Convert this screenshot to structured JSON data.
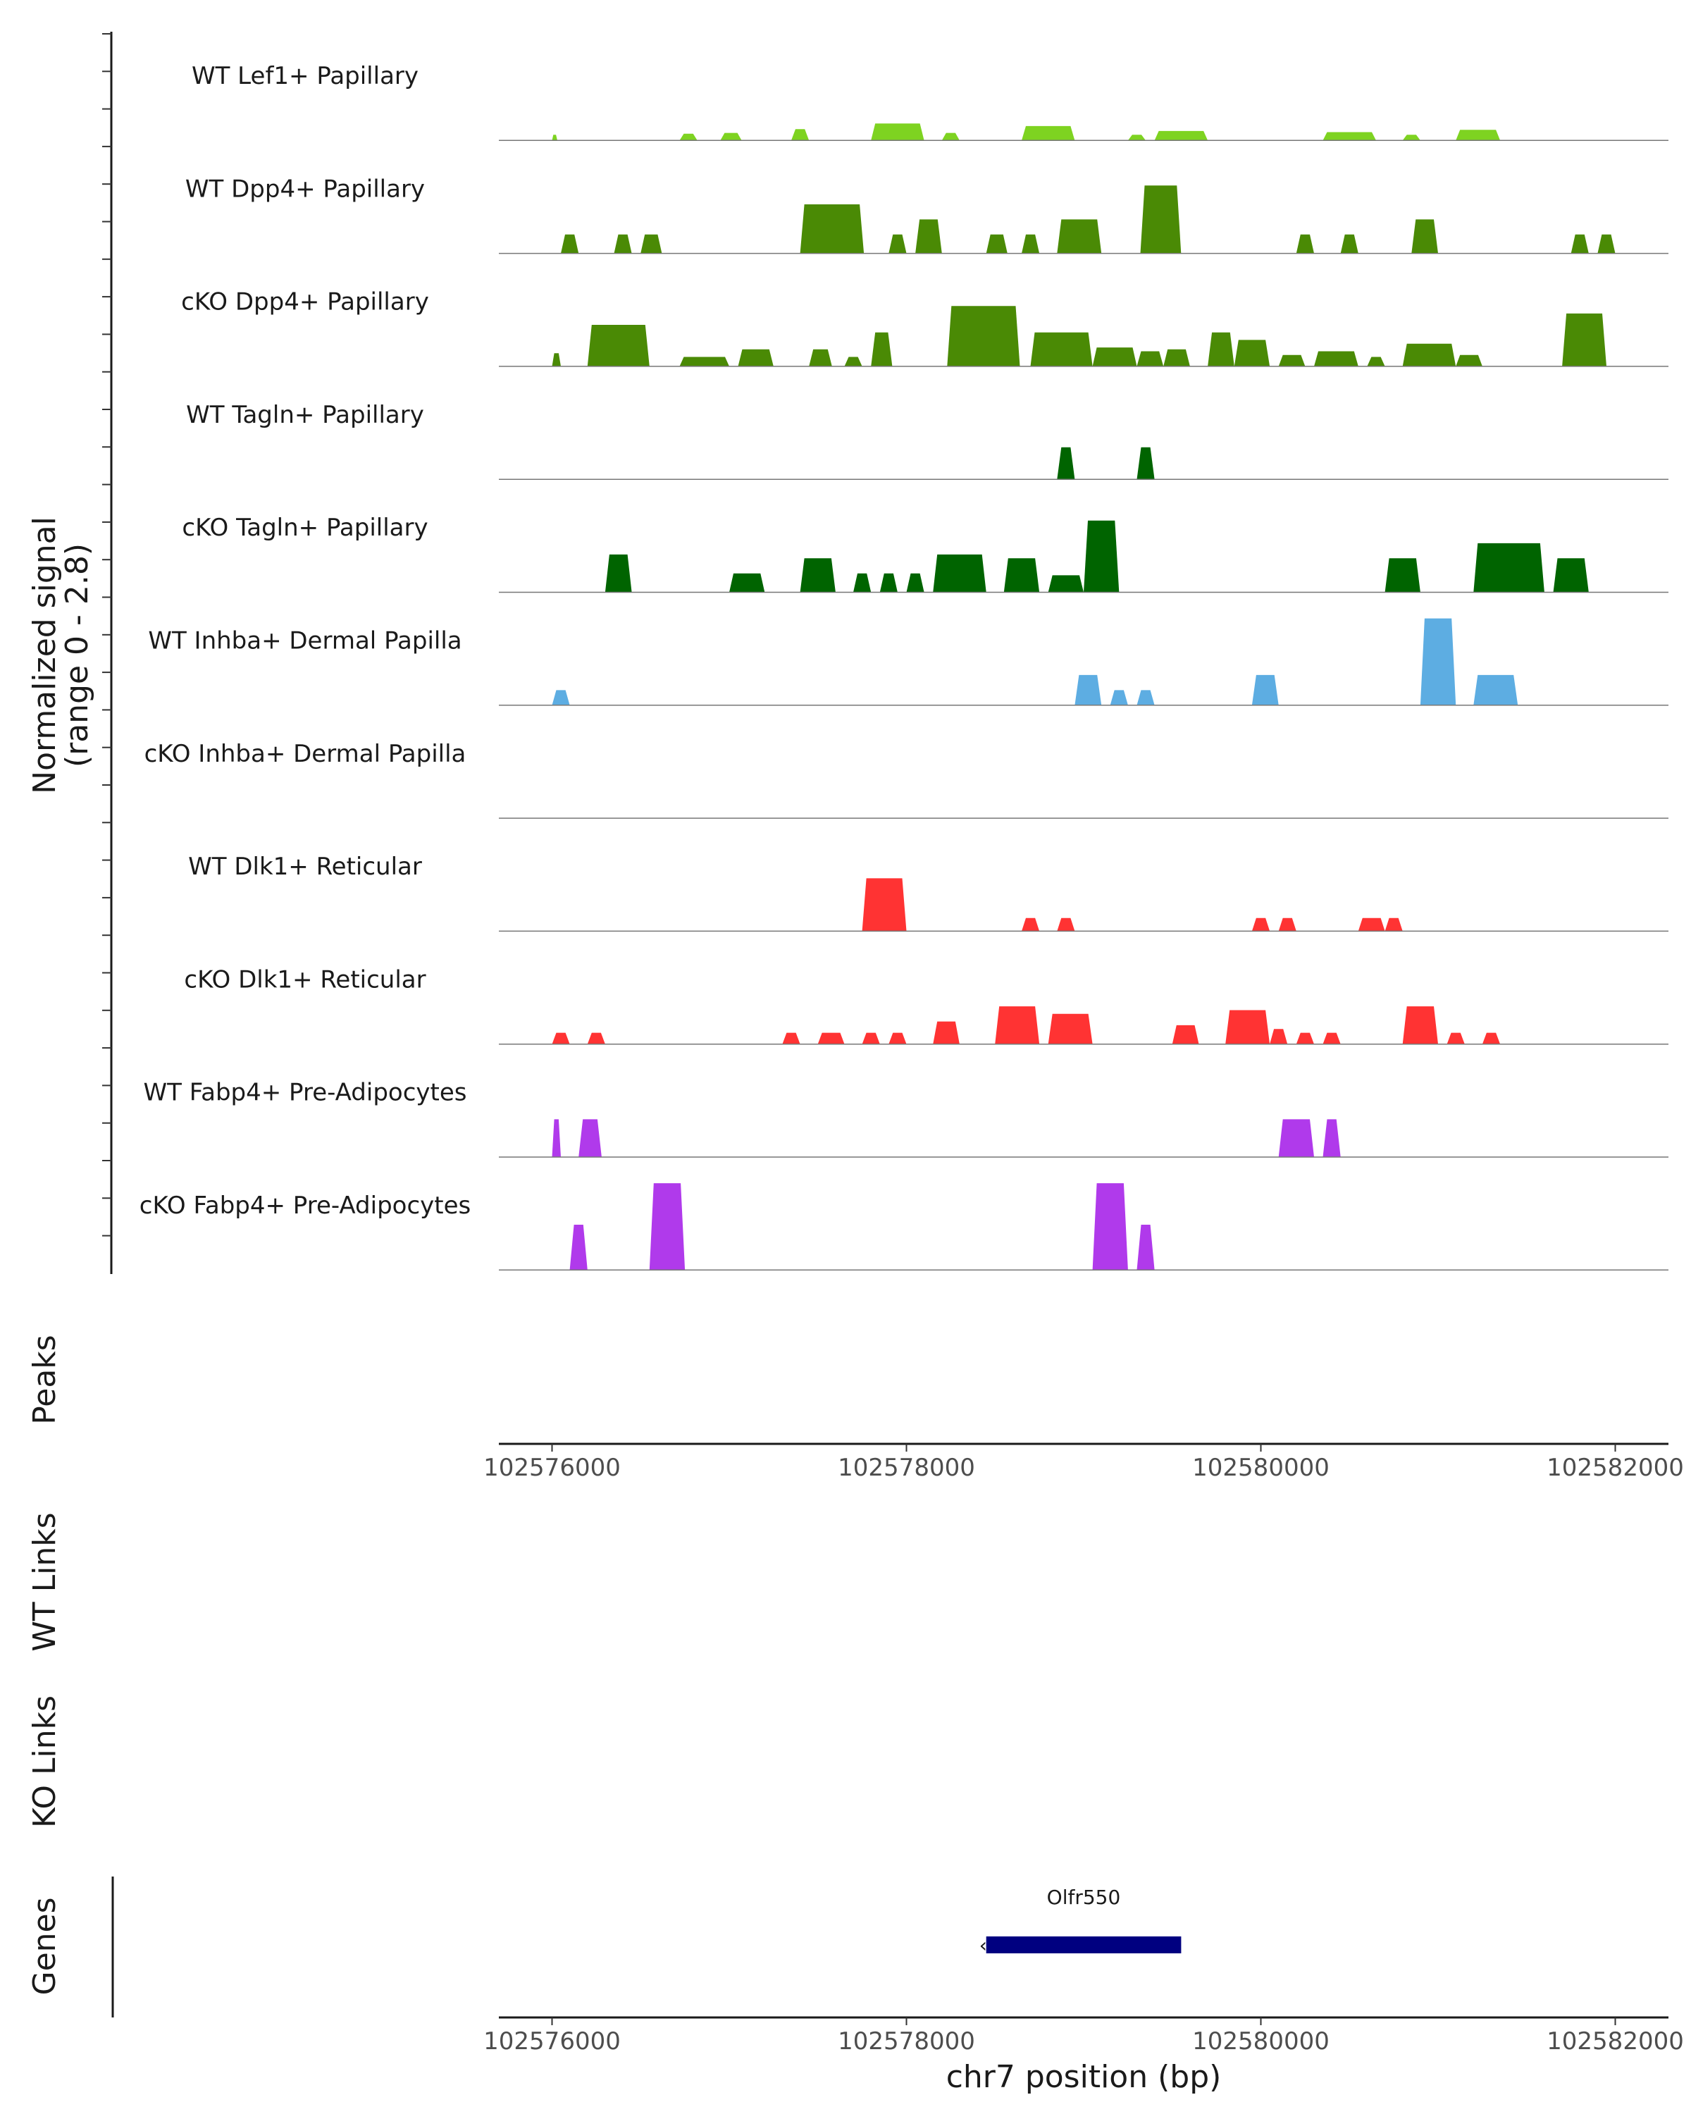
{
  "chart_data": {
    "type": "coverage",
    "chromosome": "chr7",
    "xlim": [
      102575700,
      102582300
    ],
    "x_ticks": [
      102576000,
      102578000,
      102580000,
      102582000
    ],
    "x_tick_labels": [
      "102576000",
      "102578000",
      "102580000",
      "102582000"
    ],
    "xlabel": "chr7 position (bp)",
    "ylabel_line1": "Normalized signal",
    "ylabel_line2": "(range 0 - 2.8)",
    "ylim": [
      0,
      2.8
    ],
    "section_labels": {
      "peaks": "Peaks",
      "wt_links": "WT Links",
      "ko_links": "KO Links",
      "genes": "Genes"
    },
    "tracks": [
      {
        "name": "WT Lef1+ Papillary",
        "color": "#7ED321",
        "segments": [
          [
            102576000,
            102576030,
            0.15
          ],
          [
            102576720,
            102576820,
            0.18
          ],
          [
            102576950,
            102577070,
            0.2
          ],
          [
            102577350,
            102577450,
            0.3
          ],
          [
            102577800,
            102578100,
            0.45
          ],
          [
            102578200,
            102578300,
            0.2
          ],
          [
            102578650,
            102578950,
            0.38
          ],
          [
            102579250,
            102579350,
            0.15
          ],
          [
            102579400,
            102579700,
            0.25
          ],
          [
            102580350,
            102580650,
            0.22
          ],
          [
            102580800,
            102580900,
            0.15
          ],
          [
            102581100,
            102581350,
            0.28
          ]
        ]
      },
      {
        "name": "WT Dpp4+ Papillary",
        "color": "#4A8A05",
        "segments": [
          [
            102576050,
            102576150,
            0.5
          ],
          [
            102576350,
            102576450,
            0.5
          ],
          [
            102576500,
            102576620,
            0.5
          ],
          [
            102577400,
            102577760,
            1.3
          ],
          [
            102577900,
            102578000,
            0.5
          ],
          [
            102578050,
            102578200,
            0.9
          ],
          [
            102578450,
            102578570,
            0.5
          ],
          [
            102578650,
            102578750,
            0.5
          ],
          [
            102578850,
            102579100,
            0.9
          ],
          [
            102579320,
            102579550,
            1.8
          ],
          [
            102580200,
            102580300,
            0.5
          ],
          [
            102580450,
            102580550,
            0.5
          ],
          [
            102580850,
            102581000,
            0.9
          ],
          [
            102581750,
            102581850,
            0.5
          ],
          [
            102581900,
            102582000,
            0.5
          ]
        ]
      },
      {
        "name": "cKO Dpp4+ Papillary",
        "color": "#4A8A05",
        "segments": [
          [
            102576000,
            102576050,
            0.35
          ],
          [
            102576200,
            102576550,
            1.1
          ],
          [
            102576720,
            102577000,
            0.25
          ],
          [
            102577050,
            102577250,
            0.45
          ],
          [
            102577450,
            102577580,
            0.45
          ],
          [
            102577650,
            102577750,
            0.25
          ],
          [
            102577800,
            102577920,
            0.9
          ],
          [
            102578230,
            102578640,
            1.6
          ],
          [
            102578700,
            102579050,
            0.9
          ],
          [
            102579050,
            102579300,
            0.5
          ],
          [
            102579300,
            102579450,
            0.4
          ],
          [
            102579450,
            102579600,
            0.45
          ],
          [
            102579700,
            102579850,
            0.9
          ],
          [
            102579850,
            102580050,
            0.7
          ],
          [
            102580100,
            102580250,
            0.3
          ],
          [
            102580300,
            102580550,
            0.4
          ],
          [
            102580600,
            102580700,
            0.25
          ],
          [
            102580800,
            102581100,
            0.6
          ],
          [
            102581100,
            102581250,
            0.3
          ],
          [
            102581700,
            102581950,
            1.4
          ]
        ]
      },
      {
        "name": "WT Tagln+ Papillary",
        "color": "#006400",
        "segments": [
          [
            102578850,
            102578950,
            0.85
          ],
          [
            102579300,
            102579400,
            0.85
          ]
        ]
      },
      {
        "name": "cKO Tagln+ Papillary",
        "color": "#006400",
        "segments": [
          [
            102576300,
            102576450,
            1.0
          ],
          [
            102577000,
            102577200,
            0.5
          ],
          [
            102577400,
            102577600,
            0.9
          ],
          [
            102577700,
            102577800,
            0.5
          ],
          [
            102577850,
            102577950,
            0.5
          ],
          [
            102578000,
            102578100,
            0.5
          ],
          [
            102578150,
            102578450,
            1.0
          ],
          [
            102578550,
            102578750,
            0.9
          ],
          [
            102578800,
            102579000,
            0.45
          ],
          [
            102579000,
            102579200,
            1.9
          ],
          [
            102580700,
            102580900,
            0.9
          ],
          [
            102581200,
            102581600,
            1.3
          ],
          [
            102581650,
            102581850,
            0.9
          ]
        ]
      },
      {
        "name": "WT Inhba+ Dermal Papilla",
        "color": "#5DADE2",
        "segments": [
          [
            102576000,
            102576100,
            0.4
          ],
          [
            102578950,
            102579100,
            0.8
          ],
          [
            102579150,
            102579250,
            0.4
          ],
          [
            102579300,
            102579400,
            0.4
          ],
          [
            102579950,
            102580100,
            0.8
          ],
          [
            102580900,
            102581100,
            2.3
          ],
          [
            102581200,
            102581450,
            0.8
          ]
        ]
      },
      {
        "name": "cKO Inhba+ Dermal Papilla",
        "color": "#5DADE2",
        "segments": []
      },
      {
        "name": "WT Dlk1+ Reticular",
        "color": "#FF3333",
        "segments": [
          [
            102577750,
            102578000,
            1.4
          ],
          [
            102578650,
            102578750,
            0.35
          ],
          [
            102578850,
            102578950,
            0.35
          ],
          [
            102579950,
            102580050,
            0.35
          ],
          [
            102580100,
            102580200,
            0.35
          ],
          [
            102580550,
            102580700,
            0.35
          ],
          [
            102580700,
            102580800,
            0.35
          ]
        ]
      },
      {
        "name": "cKO Dlk1+ Reticular",
        "color": "#FF3333",
        "segments": [
          [
            102576000,
            102576100,
            0.3
          ],
          [
            102576200,
            102576300,
            0.3
          ],
          [
            102577300,
            102577400,
            0.3
          ],
          [
            102577500,
            102577650,
            0.3
          ],
          [
            102577750,
            102577850,
            0.3
          ],
          [
            102577900,
            102578000,
            0.3
          ],
          [
            102578150,
            102578300,
            0.6
          ],
          [
            102578500,
            102578750,
            1.0
          ],
          [
            102578800,
            102579050,
            0.8
          ],
          [
            102579500,
            102579650,
            0.5
          ],
          [
            102579800,
            102580050,
            0.9
          ],
          [
            102580050,
            102580150,
            0.4
          ],
          [
            102580200,
            102580300,
            0.3
          ],
          [
            102580350,
            102580450,
            0.3
          ],
          [
            102580800,
            102581000,
            1.0
          ],
          [
            102581050,
            102581150,
            0.3
          ],
          [
            102581250,
            102581350,
            0.3
          ]
        ]
      },
      {
        "name": "WT Fabp4+ Pre-Adipocytes",
        "color": "#B03AEB",
        "segments": [
          [
            102576000,
            102576050,
            1.0
          ],
          [
            102576150,
            102576280,
            1.0
          ],
          [
            102580100,
            102580300,
            1.0
          ],
          [
            102580350,
            102580450,
            1.0
          ]
        ]
      },
      {
        "name": "cKO Fabp4+ Pre-Adipocytes",
        "color": "#B03AEB",
        "segments": [
          [
            102576100,
            102576200,
            1.2
          ],
          [
            102576550,
            102576750,
            2.3
          ],
          [
            102579050,
            102579250,
            2.3
          ],
          [
            102579300,
            102579400,
            1.2
          ]
        ]
      }
    ],
    "genes": [
      {
        "name": "Olfr550",
        "start": 102578450,
        "end": 102579550,
        "strand": "-",
        "color": "#000080"
      }
    ]
  }
}
